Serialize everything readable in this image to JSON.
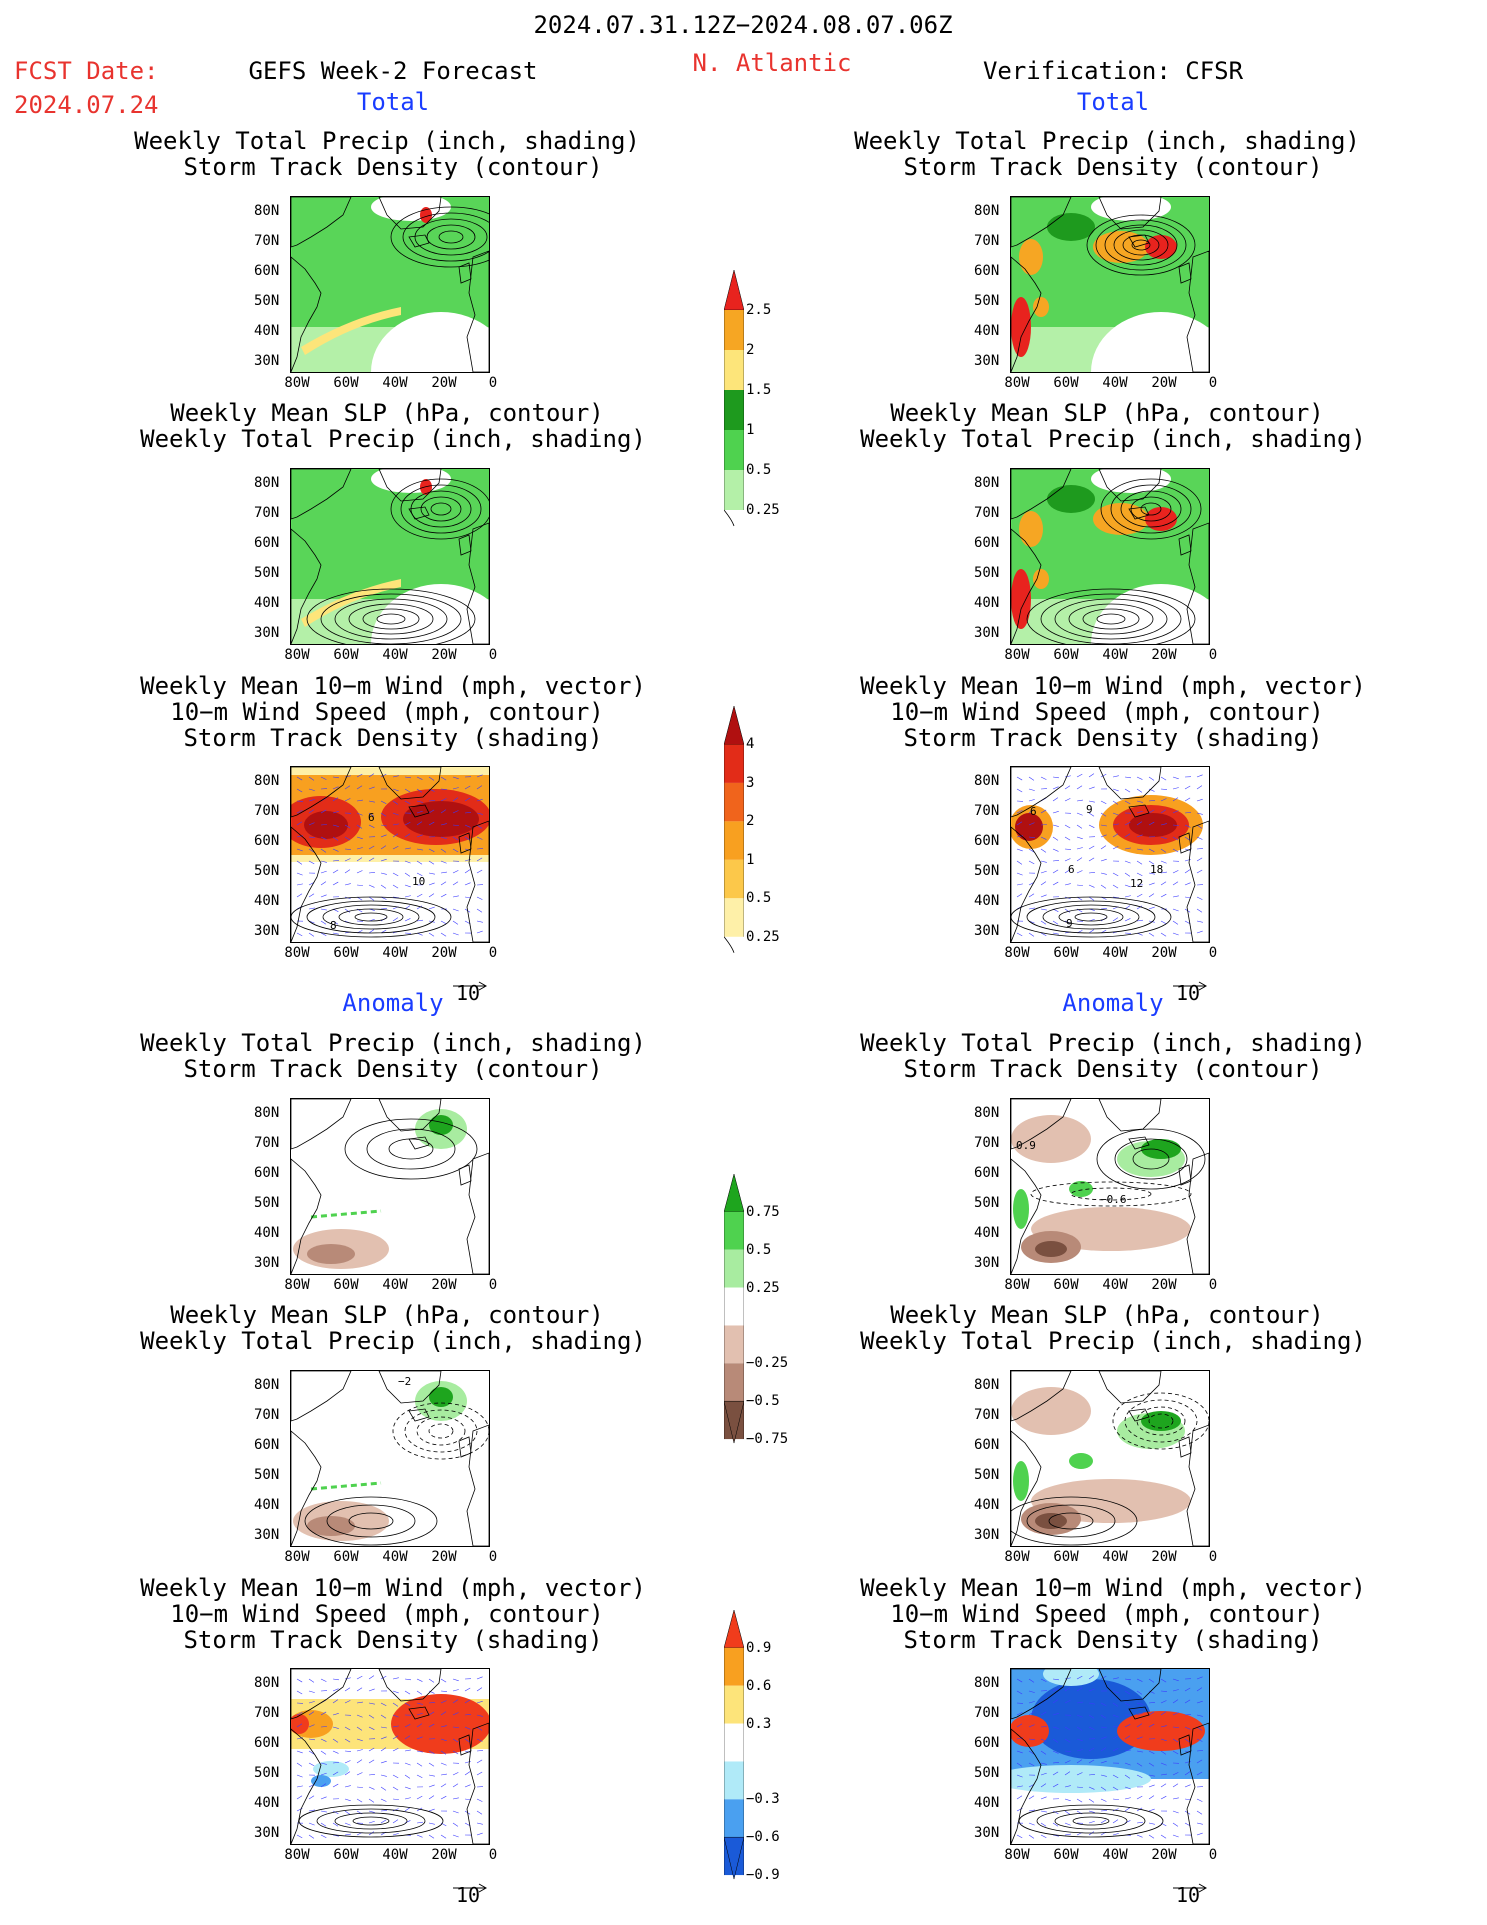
{
  "header": {
    "period": "2024.07.31.12Z−2024.08.07.06Z",
    "fcst_label": "FCST Date:",
    "fcst_date": "2024.07.24",
    "left_title": "GEFS Week-2 Forecast",
    "region": "N. Atlantic",
    "right_title": "Verification: CFSR"
  },
  "sections": {
    "total": "Total",
    "anomaly": "Anomaly"
  },
  "panel_titles": {
    "precip_track": [
      "Weekly Total Precip (inch, shading)",
      "Storm Track Density (contour)"
    ],
    "slp_precip": [
      "Weekly Mean SLP (hPa, contour)",
      "Weekly Total Precip (inch, shading)"
    ],
    "wind_track": [
      "Weekly Mean 10−m Wind (mph, vector)",
      "10−m Wind Speed (mph, contour)",
      "Storm Track Density (shading)"
    ]
  },
  "axes": {
    "lat_ticks": [
      "80N",
      "70N",
      "60N",
      "50N",
      "40N",
      "30N"
    ],
    "lon_ticks": [
      "80W",
      "60W",
      "40W",
      "20W",
      "0"
    ]
  },
  "vector_ref": "10",
  "colorbars": {
    "precip_total": {
      "labels": [
        "2.5",
        "2",
        "1.5",
        "1",
        "0.5",
        "0.25"
      ],
      "colors": [
        "#e8231e",
        "#f6a623",
        "#fde57a",
        "#1e9a1e",
        "#4fd24f",
        "#b4f0a8"
      ]
    },
    "track_total": {
      "labels": [
        "4",
        "3",
        "2",
        "1",
        "0.5",
        "0.25"
      ],
      "colors": [
        "#b01010",
        "#e22c18",
        "#f0641c",
        "#f8a020",
        "#fcc84a",
        "#fef0a8"
      ]
    },
    "precip_anom": {
      "labels": [
        "0.75",
        "0.5",
        "0.25",
        "−0.25",
        "−0.5",
        "−0.75"
      ],
      "colors": [
        "#1ea51e",
        "#4fd24f",
        "#a8eca0",
        "#ffffff",
        "#e2c0b0",
        "#b88a78",
        "#7a5040"
      ]
    },
    "track_anom": {
      "labels": [
        "0.9",
        "0.6",
        "0.3",
        "−0.3",
        "−0.6",
        "−0.9"
      ],
      "colors": [
        "#f03c1c",
        "#f8a020",
        "#fde47a",
        "#ffffff",
        "#b0eaf8",
        "#4aa0f0",
        "#1a5ad8"
      ]
    }
  },
  "contour_labels": {
    "fc_total_wind": [
      "6",
      "10",
      "8"
    ],
    "ver_total_wind": [
      "6",
      "9",
      "18",
      "12",
      "9",
      "6"
    ],
    "ver_anom_precip": [
      "0.9",
      "−0.6"
    ],
    "fc_anom_slp": [
      "−2"
    ]
  }
}
